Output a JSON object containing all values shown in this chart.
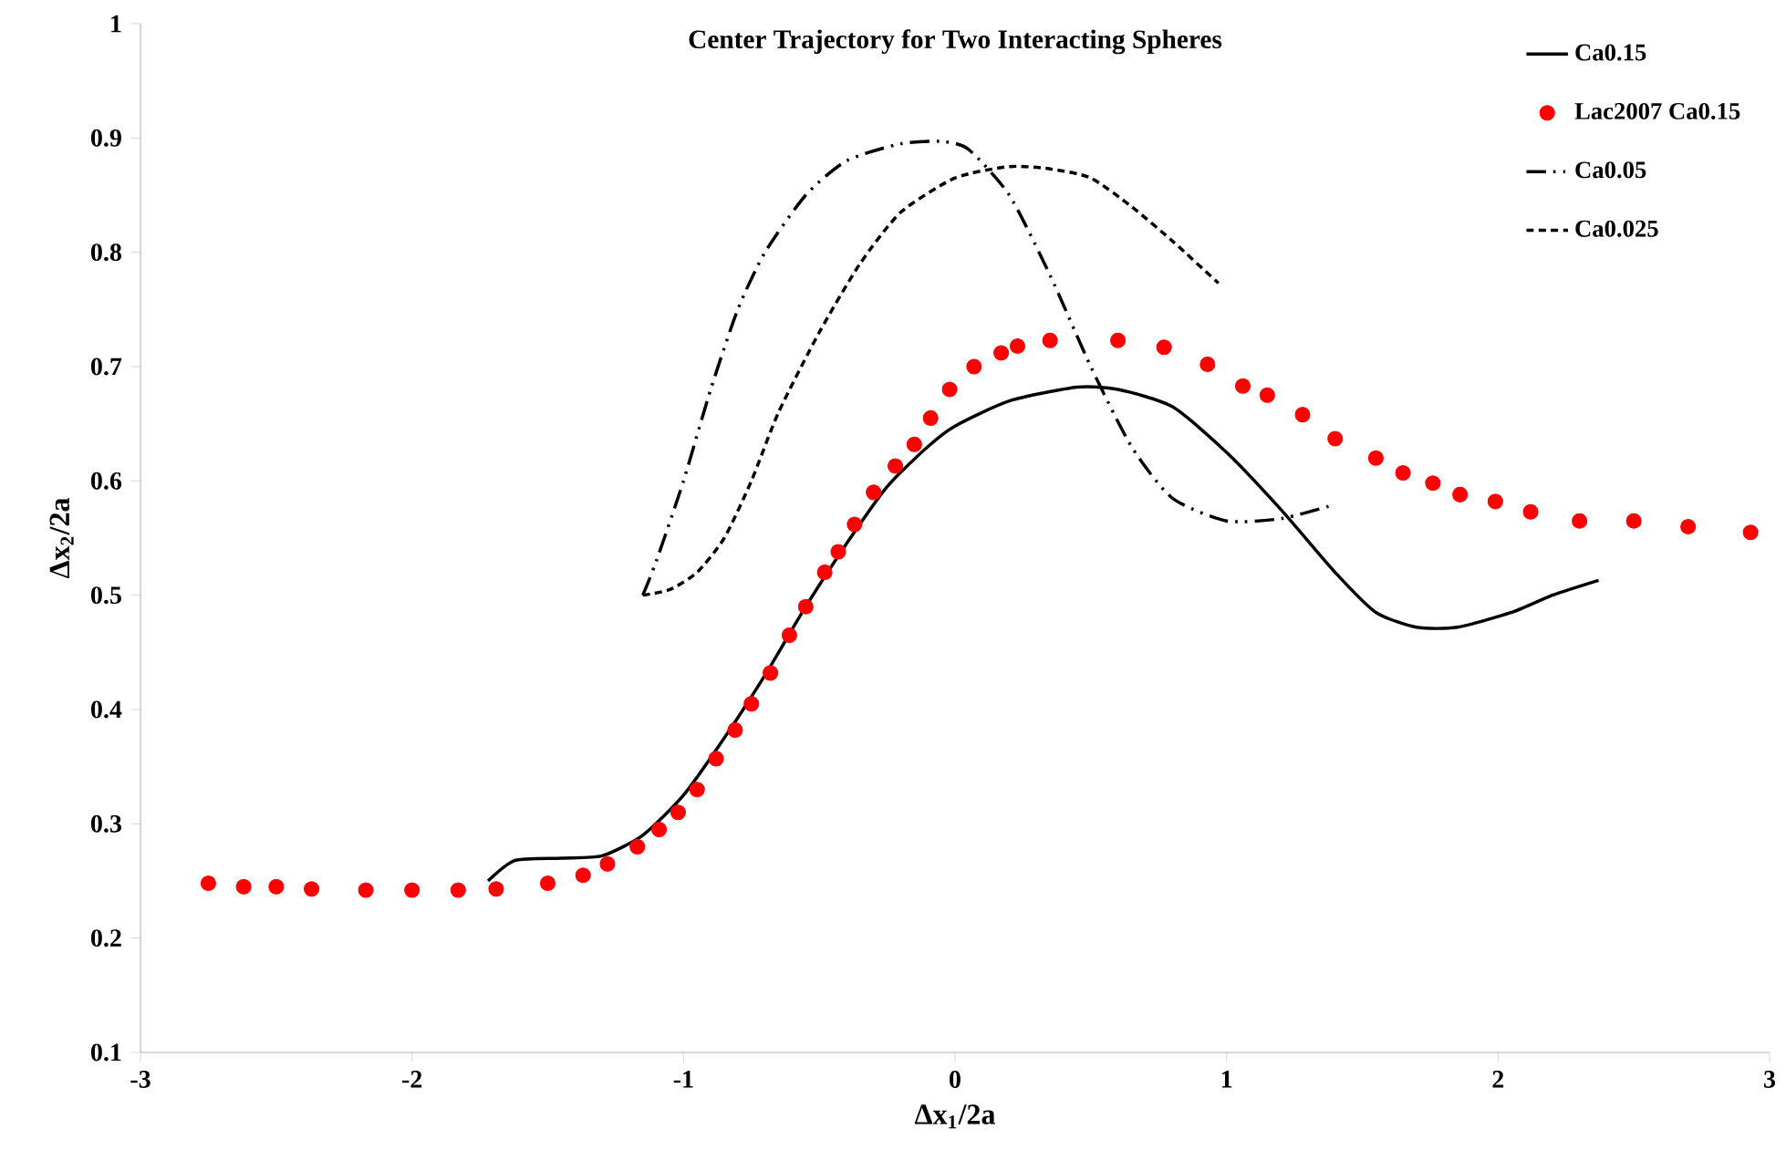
{
  "chart_data": {
    "type": "line",
    "title": "Center Trajectory for Two Interacting Spheres",
    "xlabel": "Δx$_{1}$/2a",
    "ylabel": "Δx$_{2}$/2a",
    "xlim": [
      -3,
      3
    ],
    "ylim": [
      0.1,
      1
    ],
    "xticks": [
      -3,
      -2,
      -1,
      0,
      1,
      2,
      3
    ],
    "yticks": [
      0.1,
      0.2,
      0.3,
      0.4,
      0.5,
      0.6,
      0.7,
      0.8,
      0.9,
      1
    ],
    "grid": false,
    "legend": "top right",
    "series": [
      {
        "name": "Ca0.15",
        "line_style": "solid",
        "marker": "none",
        "color": "#000000",
        "x": [
          -1.72,
          -1.62,
          -1.45,
          -1.3,
          -1.15,
          -1.0,
          -0.85,
          -0.7,
          -0.55,
          -0.4,
          -0.25,
          -0.1,
          0.0,
          0.2,
          0.45,
          0.6,
          0.8,
          1.0,
          1.2,
          1.4,
          1.55,
          1.7,
          1.85,
          2.05,
          2.2,
          2.37
        ],
        "values": [
          0.25,
          0.268,
          0.27,
          0.272,
          0.29,
          0.325,
          0.375,
          0.43,
          0.49,
          0.545,
          0.595,
          0.63,
          0.648,
          0.67,
          0.682,
          0.68,
          0.665,
          0.625,
          0.575,
          0.52,
          0.485,
          0.472,
          0.472,
          0.485,
          0.5,
          0.513
        ]
      },
      {
        "name": "Lac2007 Ca0.15",
        "type": "scatter",
        "marker": "circle",
        "color": "#ff0000",
        "x": [
          -2.75,
          -2.62,
          -2.5,
          -2.37,
          -2.17,
          -2.0,
          -1.83,
          -1.69,
          -1.5,
          -1.37,
          -1.28,
          -1.17,
          -1.09,
          -1.02,
          -0.95,
          -0.88,
          -0.81,
          -0.75,
          -0.68,
          -0.61,
          -0.55,
          -0.48,
          -0.43,
          -0.37,
          -0.3,
          -0.22,
          -0.15,
          -0.09,
          -0.02,
          0.07,
          0.17,
          0.23,
          0.35,
          0.6,
          0.77,
          0.93,
          1.06,
          1.15,
          1.28,
          1.4,
          1.55,
          1.65,
          1.76,
          1.86,
          1.99,
          2.12,
          2.3,
          2.5,
          2.7,
          2.93
        ],
        "values": [
          0.248,
          0.245,
          0.245,
          0.243,
          0.242,
          0.242,
          0.242,
          0.243,
          0.248,
          0.255,
          0.265,
          0.28,
          0.295,
          0.31,
          0.33,
          0.357,
          0.382,
          0.405,
          0.432,
          0.465,
          0.49,
          0.52,
          0.538,
          0.562,
          0.59,
          0.613,
          0.632,
          0.655,
          0.68,
          0.7,
          0.712,
          0.718,
          0.723,
          0.723,
          0.717,
          0.702,
          0.683,
          0.675,
          0.658,
          0.637,
          0.62,
          0.607,
          0.598,
          0.588,
          0.582,
          0.573,
          0.565,
          0.565,
          0.56,
          0.555
        ]
      },
      {
        "name": "Ca0.05",
        "line_style": "dashdot",
        "marker": "none",
        "color": "#000000",
        "x": [
          -1.15,
          -1.1,
          -1.0,
          -0.9,
          -0.8,
          -0.7,
          -0.55,
          -0.4,
          -0.2,
          -0.05,
          0.05,
          0.2,
          0.35,
          0.5,
          0.65,
          0.8,
          1.0,
          1.2,
          1.38
        ],
        "values": [
          0.5,
          0.53,
          0.6,
          0.68,
          0.75,
          0.8,
          0.85,
          0.88,
          0.895,
          0.897,
          0.89,
          0.85,
          0.78,
          0.7,
          0.63,
          0.585,
          0.565,
          0.567,
          0.578
        ]
      },
      {
        "name": "Ca0.025",
        "line_style": "dashed",
        "marker": "none",
        "color": "#000000",
        "x": [
          -1.15,
          -1.05,
          -0.95,
          -0.85,
          -0.75,
          -0.65,
          -0.5,
          -0.35,
          -0.2,
          0.0,
          0.2,
          0.35,
          0.5,
          0.65,
          0.8,
          0.97
        ],
        "values": [
          0.5,
          0.505,
          0.52,
          0.55,
          0.6,
          0.66,
          0.73,
          0.79,
          0.835,
          0.865,
          0.875,
          0.873,
          0.865,
          0.84,
          0.81,
          0.773
        ]
      }
    ]
  }
}
